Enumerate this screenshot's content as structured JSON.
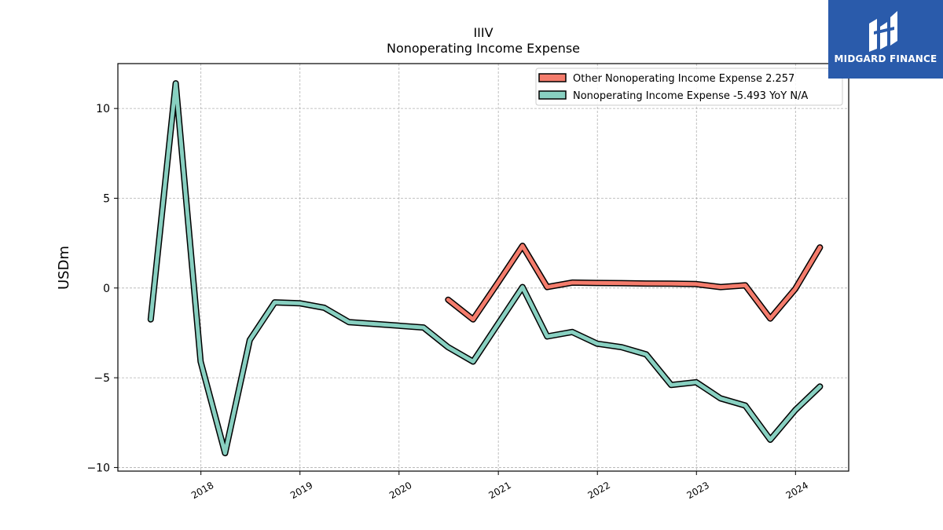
{
  "header": {
    "ticker": "IIIV",
    "subtitle": "Nonoperating Income Expense"
  },
  "logo": {
    "name": "MIDGARD FINANCE",
    "background": "#2a5bab"
  },
  "chart_data": {
    "type": "line",
    "title": "IIIV",
    "subtitle": "Nonoperating Income Expense",
    "xlabel": "",
    "ylabel": "USDm",
    "ylim": [
      -10.2,
      12.5
    ],
    "xlim": [
      "2017-03-01",
      "2024-07-15"
    ],
    "yticks": [
      10,
      5,
      0,
      -5,
      -10
    ],
    "ytick_labels": [
      "10",
      "5",
      "0",
      "−5",
      "−10"
    ],
    "xticks": [
      "2018-01-01",
      "2019-01-01",
      "2020-01-01",
      "2021-01-01",
      "2022-01-01",
      "2023-01-01",
      "2024-01-01"
    ],
    "xtick_labels": [
      "2018",
      "2019",
      "2020",
      "2021",
      "2022",
      "2023",
      "2024"
    ],
    "grid": true,
    "legend_position": "top-right",
    "series": [
      {
        "name": "Other Nonoperating Income Expense",
        "legend_label": "Other Nonoperating Income Expense  2.257",
        "color": "#f47c6c",
        "x": [
          "2020-06-30",
          "2020-09-30",
          "2020-12-31",
          "2021-03-31",
          "2021-06-30",
          "2021-09-30",
          "2021-12-31",
          "2022-03-31",
          "2022-06-30",
          "2022-09-30",
          "2022-12-31",
          "2023-03-31",
          "2023-06-30",
          "2023-09-30",
          "2023-12-31",
          "2024-03-31"
        ],
        "y": [
          -0.65,
          -1.75,
          0.3,
          2.35,
          0.05,
          0.3,
          0.28,
          0.27,
          0.25,
          0.24,
          0.22,
          0.05,
          0.15,
          -1.7,
          -0.05,
          2.26
        ]
      },
      {
        "name": "Nonoperating Income Expense",
        "legend_label": "Nonoperating Income Expense  -5.493 YoY N/A",
        "color": "#88d0c1",
        "x": [
          "2017-06-30",
          "2017-09-30",
          "2017-12-31",
          "2018-03-31",
          "2018-06-30",
          "2018-09-30",
          "2018-12-31",
          "2019-03-31",
          "2019-06-30",
          "2019-09-30",
          "2019-12-31",
          "2020-03-31",
          "2020-06-30",
          "2020-09-30",
          "2020-12-31",
          "2021-03-31",
          "2021-06-30",
          "2021-09-30",
          "2021-12-31",
          "2022-03-31",
          "2022-06-30",
          "2022-09-30",
          "2022-12-31",
          "2023-03-31",
          "2023-06-30",
          "2023-09-30",
          "2023-12-31",
          "2024-03-31"
        ],
        "y": [
          -1.75,
          11.4,
          -4.1,
          -9.2,
          -2.9,
          -0.8,
          -0.85,
          -1.1,
          -1.9,
          -2.0,
          -2.1,
          -2.2,
          -3.3,
          -4.1,
          -2.0,
          0.05,
          -2.7,
          -2.45,
          -3.1,
          -3.3,
          -3.7,
          -5.4,
          -5.25,
          -6.15,
          -6.55,
          -8.45,
          -6.8,
          -5.49
        ]
      }
    ]
  }
}
